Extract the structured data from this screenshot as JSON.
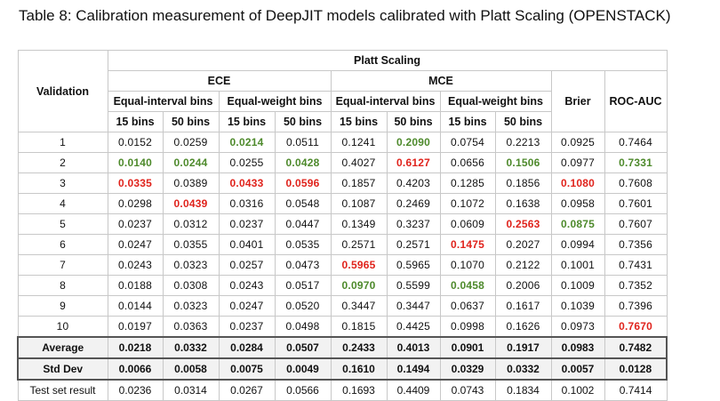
{
  "caption": "Table 8: Calibration measurement of DeepJIT models calibrated with Platt Scaling (OPENSTACK)",
  "headers": {
    "validation": "Validation",
    "platt": "Platt Scaling",
    "ece": "ECE",
    "mce": "MCE",
    "eq_interval": "Equal-interval bins",
    "eq_weight": "Equal-weight bins",
    "brier": "Brier",
    "rocauc": "ROC-AUC",
    "b15": "15 bins",
    "b50": "50 bins"
  },
  "colors": {
    "best": "#4e8a2c",
    "worst": "#e0231c"
  },
  "rows": [
    {
      "label": "1",
      "cells": [
        {
          "v": "0.0152",
          "c": ""
        },
        {
          "v": "0.0259",
          "c": ""
        },
        {
          "v": "0.0214",
          "c": "g"
        },
        {
          "v": "0.0511",
          "c": ""
        },
        {
          "v": "0.1241",
          "c": ""
        },
        {
          "v": "0.2090",
          "c": "g"
        },
        {
          "v": "0.0754",
          "c": ""
        },
        {
          "v": "0.2213",
          "c": ""
        },
        {
          "v": "0.0925",
          "c": ""
        },
        {
          "v": "0.7464",
          "c": ""
        }
      ]
    },
    {
      "label": "2",
      "cells": [
        {
          "v": "0.0140",
          "c": "g"
        },
        {
          "v": "0.0244",
          "c": "g"
        },
        {
          "v": "0.0255",
          "c": ""
        },
        {
          "v": "0.0428",
          "c": "g"
        },
        {
          "v": "0.4027",
          "c": ""
        },
        {
          "v": "0.6127",
          "c": "r"
        },
        {
          "v": "0.0656",
          "c": ""
        },
        {
          "v": "0.1506",
          "c": "g"
        },
        {
          "v": "0.0977",
          "c": ""
        },
        {
          "v": "0.7331",
          "c": "g"
        }
      ]
    },
    {
      "label": "3",
      "cells": [
        {
          "v": "0.0335",
          "c": "r"
        },
        {
          "v": "0.0389",
          "c": ""
        },
        {
          "v": "0.0433",
          "c": "r"
        },
        {
          "v": "0.0596",
          "c": "r"
        },
        {
          "v": "0.1857",
          "c": ""
        },
        {
          "v": "0.4203",
          "c": ""
        },
        {
          "v": "0.1285",
          "c": ""
        },
        {
          "v": "0.1856",
          "c": ""
        },
        {
          "v": "0.1080",
          "c": "r"
        },
        {
          "v": "0.7608",
          "c": ""
        }
      ]
    },
    {
      "label": "4",
      "cells": [
        {
          "v": "0.0298",
          "c": ""
        },
        {
          "v": "0.0439",
          "c": "r"
        },
        {
          "v": "0.0316",
          "c": ""
        },
        {
          "v": "0.0548",
          "c": ""
        },
        {
          "v": "0.1087",
          "c": ""
        },
        {
          "v": "0.2469",
          "c": ""
        },
        {
          "v": "0.1072",
          "c": ""
        },
        {
          "v": "0.1638",
          "c": ""
        },
        {
          "v": "0.0958",
          "c": ""
        },
        {
          "v": "0.7601",
          "c": ""
        }
      ]
    },
    {
      "label": "5",
      "cells": [
        {
          "v": "0.0237",
          "c": ""
        },
        {
          "v": "0.0312",
          "c": ""
        },
        {
          "v": "0.0237",
          "c": ""
        },
        {
          "v": "0.0447",
          "c": ""
        },
        {
          "v": "0.1349",
          "c": ""
        },
        {
          "v": "0.3237",
          "c": ""
        },
        {
          "v": "0.0609",
          "c": ""
        },
        {
          "v": "0.2563",
          "c": "r"
        },
        {
          "v": "0.0875",
          "c": "g"
        },
        {
          "v": "0.7607",
          "c": ""
        }
      ]
    },
    {
      "label": "6",
      "cells": [
        {
          "v": "0.0247",
          "c": ""
        },
        {
          "v": "0.0355",
          "c": ""
        },
        {
          "v": "0.0401",
          "c": ""
        },
        {
          "v": "0.0535",
          "c": ""
        },
        {
          "v": "0.2571",
          "c": ""
        },
        {
          "v": "0.2571",
          "c": ""
        },
        {
          "v": "0.1475",
          "c": "r"
        },
        {
          "v": "0.2027",
          "c": ""
        },
        {
          "v": "0.0994",
          "c": ""
        },
        {
          "v": "0.7356",
          "c": ""
        }
      ]
    },
    {
      "label": "7",
      "cells": [
        {
          "v": "0.0243",
          "c": ""
        },
        {
          "v": "0.0323",
          "c": ""
        },
        {
          "v": "0.0257",
          "c": ""
        },
        {
          "v": "0.0473",
          "c": ""
        },
        {
          "v": "0.5965",
          "c": "r"
        },
        {
          "v": "0.5965",
          "c": ""
        },
        {
          "v": "0.1070",
          "c": ""
        },
        {
          "v": "0.2122",
          "c": ""
        },
        {
          "v": "0.1001",
          "c": ""
        },
        {
          "v": "0.7431",
          "c": ""
        }
      ]
    },
    {
      "label": "8",
      "cells": [
        {
          "v": "0.0188",
          "c": ""
        },
        {
          "v": "0.0308",
          "c": ""
        },
        {
          "v": "0.0243",
          "c": ""
        },
        {
          "v": "0.0517",
          "c": ""
        },
        {
          "v": "0.0970",
          "c": "g"
        },
        {
          "v": "0.5599",
          "c": ""
        },
        {
          "v": "0.0458",
          "c": "g"
        },
        {
          "v": "0.2006",
          "c": ""
        },
        {
          "v": "0.1009",
          "c": ""
        },
        {
          "v": "0.7352",
          "c": ""
        }
      ]
    },
    {
      "label": "9",
      "cells": [
        {
          "v": "0.0144",
          "c": ""
        },
        {
          "v": "0.0323",
          "c": ""
        },
        {
          "v": "0.0247",
          "c": ""
        },
        {
          "v": "0.0520",
          "c": ""
        },
        {
          "v": "0.3447",
          "c": ""
        },
        {
          "v": "0.3447",
          "c": ""
        },
        {
          "v": "0.0637",
          "c": ""
        },
        {
          "v": "0.1617",
          "c": ""
        },
        {
          "v": "0.1039",
          "c": ""
        },
        {
          "v": "0.7396",
          "c": ""
        }
      ]
    },
    {
      "label": "10",
      "cells": [
        {
          "v": "0.0197",
          "c": ""
        },
        {
          "v": "0.0363",
          "c": ""
        },
        {
          "v": "0.0237",
          "c": ""
        },
        {
          "v": "0.0498",
          "c": ""
        },
        {
          "v": "0.1815",
          "c": ""
        },
        {
          "v": "0.4425",
          "c": ""
        },
        {
          "v": "0.0998",
          "c": ""
        },
        {
          "v": "0.1626",
          "c": ""
        },
        {
          "v": "0.0973",
          "c": ""
        },
        {
          "v": "0.7670",
          "c": "r"
        }
      ]
    }
  ],
  "summary": [
    {
      "label": "Average",
      "cells": [
        "0.0218",
        "0.0332",
        "0.0284",
        "0.0507",
        "0.2433",
        "0.4013",
        "0.0901",
        "0.1917",
        "0.0983",
        "0.7482"
      ]
    },
    {
      "label": "Std Dev",
      "cells": [
        "0.0066",
        "0.0058",
        "0.0075",
        "0.0049",
        "0.1610",
        "0.1494",
        "0.0329",
        "0.0332",
        "0.0057",
        "0.0128"
      ]
    }
  ],
  "test": {
    "label": "Test set result",
    "cells": [
      "0.0236",
      "0.0314",
      "0.0267",
      "0.0566",
      "0.1693",
      "0.4409",
      "0.0743",
      "0.1834",
      "0.1002",
      "0.7414"
    ]
  }
}
